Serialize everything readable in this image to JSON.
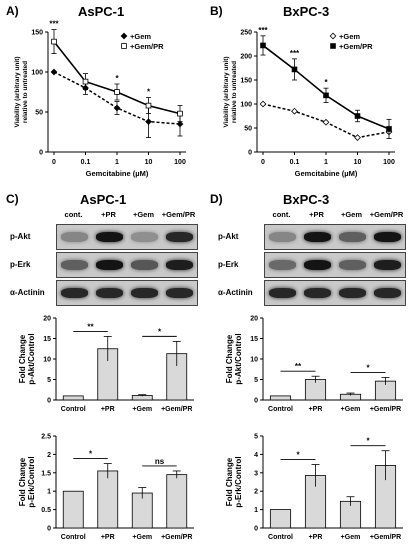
{
  "panels": {
    "A": {
      "letter": "A)",
      "title": "AsPC-1"
    },
    "B": {
      "letter": "B)",
      "title": "BxPC-3"
    },
    "C": {
      "letter": "C)",
      "title": "AsPC-1"
    },
    "D": {
      "letter": "D)",
      "title": "BxPC-3"
    }
  },
  "blots": {
    "C": {
      "lanes": [
        "cont.",
        "+PR",
        "+Gem",
        "+Gem/PR"
      ],
      "rows": [
        {
          "label": "p-Akt",
          "intensity": [
            0.35,
            0.95,
            0.3,
            0.85
          ]
        },
        {
          "label": "p-Erk",
          "intensity": [
            0.55,
            0.95,
            0.6,
            0.9
          ]
        },
        {
          "label": "α-Actinin",
          "intensity": [
            0.85,
            0.85,
            0.85,
            0.85
          ]
        }
      ]
    },
    "D": {
      "lanes": [
        "cont.",
        "+PR",
        "+Gem",
        "+Gem/PR"
      ],
      "rows": [
        {
          "label": "p-Akt",
          "intensity": [
            0.35,
            0.95,
            0.55,
            0.95
          ]
        },
        {
          "label": "p-Erk",
          "intensity": [
            0.5,
            0.95,
            0.55,
            0.9
          ]
        },
        {
          "label": "α-Actinin",
          "intensity": [
            0.85,
            0.85,
            0.85,
            0.85
          ]
        }
      ]
    }
  },
  "chart_data": [
    {
      "id": "A",
      "type": "line",
      "x": [
        "0",
        "0.1",
        "1",
        "10",
        "100"
      ],
      "xlabel": "Gemcitabine (µM)",
      "ylabel": "Viability (arbitrary unit) relative to untreated",
      "ylim": [
        0,
        150
      ],
      "yticks": [
        "0",
        "50",
        "100",
        "150"
      ],
      "legend_position": "top-right",
      "series": [
        {
          "name": "+Gem",
          "values": [
            100,
            80,
            55,
            38,
            35
          ],
          "errors": [
            0,
            8,
            8,
            20,
            15
          ],
          "style": "dashed",
          "marker": "filled-diamond"
        },
        {
          "name": "+Gem/PR",
          "values": [
            138,
            88,
            75,
            58,
            48
          ],
          "errors": [
            15,
            10,
            10,
            10,
            10
          ],
          "style": "solid",
          "marker": "open-square"
        }
      ],
      "annotations": [
        {
          "x_index": 0,
          "text": "***"
        },
        {
          "x_index": 2,
          "text": "*"
        },
        {
          "x_index": 3,
          "text": "*"
        }
      ]
    },
    {
      "id": "B",
      "type": "line",
      "x": [
        "0",
        "0.1",
        "1",
        "10",
        "100"
      ],
      "xlabel": "Gemcitabine (µM)",
      "ylabel": "Viability (arbitrary unit) relative to untreated",
      "ylim": [
        0,
        250
      ],
      "yticks": [
        "0",
        "50",
        "100",
        "150",
        "200",
        "250"
      ],
      "legend_position": "top-right",
      "series": [
        {
          "name": "+Gem",
          "values": [
            100,
            85,
            62,
            30,
            42
          ],
          "errors": [
            0,
            0,
            0,
            0,
            0
          ],
          "style": "dashed",
          "marker": "open-diamond"
        },
        {
          "name": "+Gem/PR",
          "values": [
            222,
            172,
            118,
            75,
            48
          ],
          "errors": [
            20,
            22,
            15,
            12,
            20
          ],
          "style": "solid",
          "marker": "filled-square"
        }
      ],
      "annotations": [
        {
          "x_index": 0,
          "text": "***"
        },
        {
          "x_index": 1,
          "text": "***"
        },
        {
          "x_index": 2,
          "text": "*"
        }
      ]
    },
    {
      "id": "C-akt",
      "type": "bar",
      "categories": [
        "Control",
        "+PR",
        "+Gem",
        "+Gem/PR"
      ],
      "values": [
        1,
        12.5,
        1.1,
        11.3
      ],
      "errors": [
        0,
        3,
        0.2,
        3
      ],
      "ylabel": "Fold Change p-Akt/Control",
      "ylim": [
        0,
        20
      ],
      "yticks": [
        "0",
        "5",
        "10",
        "15",
        "20"
      ],
      "significance": [
        {
          "from": 0,
          "to": 1,
          "text": "**"
        },
        {
          "from": 2,
          "to": 3,
          "text": "*"
        }
      ]
    },
    {
      "id": "C-erk",
      "type": "bar",
      "categories": [
        "Control",
        "+PR",
        "+Gem",
        "+Gem/PR"
      ],
      "values": [
        1,
        1.55,
        0.95,
        1.45
      ],
      "errors": [
        0,
        0.2,
        0.15,
        0.1
      ],
      "ylabel": "Fold Change p-Erk/Control",
      "ylim": [
        0,
        2.5
      ],
      "yticks": [
        "0",
        "0.5",
        "1",
        "1.5",
        "2",
        "2.5"
      ],
      "significance": [
        {
          "from": 0,
          "to": 1,
          "text": "*"
        },
        {
          "from": 2,
          "to": 3,
          "text": "ns"
        }
      ]
    },
    {
      "id": "D-akt",
      "type": "bar",
      "categories": [
        "Control",
        "+PR",
        "+Gem",
        "+Gem/PR"
      ],
      "values": [
        1,
        5,
        1.4,
        4.6
      ],
      "errors": [
        0,
        0.8,
        0.3,
        0.9
      ],
      "ylabel": "Fold Change p-Akt/Control",
      "ylim": [
        0,
        20
      ],
      "yticks": [
        "0",
        "5",
        "10",
        "15",
        "20"
      ],
      "significance": [
        {
          "from": 0,
          "to": 1,
          "text": "**"
        },
        {
          "from": 2,
          "to": 3,
          "text": "*"
        }
      ]
    },
    {
      "id": "D-erk",
      "type": "bar",
      "categories": [
        "Control",
        "+PR",
        "+Gem",
        "+Gem/PR"
      ],
      "values": [
        1,
        2.85,
        1.45,
        3.4
      ],
      "errors": [
        0,
        0.6,
        0.25,
        0.8
      ],
      "ylabel": "Fold Change p-Erk/Control",
      "ylim": [
        0,
        5
      ],
      "yticks": [
        "0",
        "1",
        "2",
        "3",
        "4",
        "5"
      ],
      "significance": [
        {
          "from": 0,
          "to": 1,
          "text": "*"
        },
        {
          "from": 2,
          "to": 3,
          "text": "*"
        }
      ]
    }
  ]
}
